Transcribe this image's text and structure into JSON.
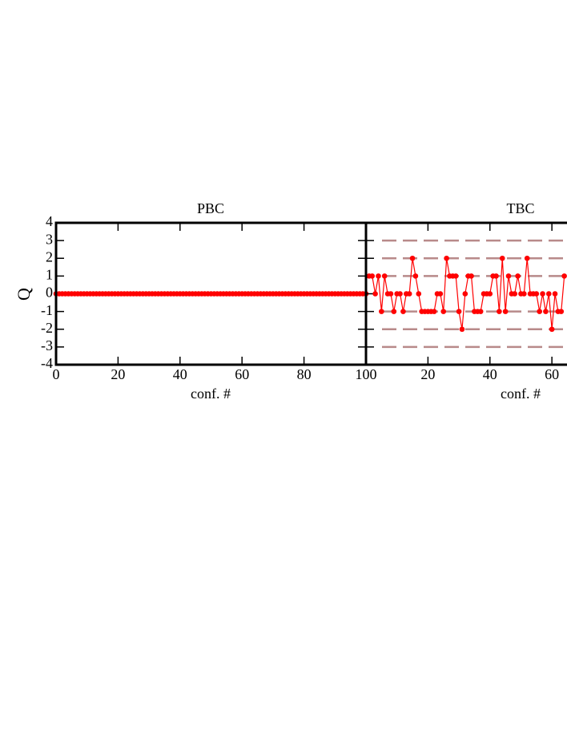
{
  "chart_data": [
    {
      "type": "line",
      "title": "PBC",
      "xlabel": "conf. #",
      "ylabel": "Q",
      "color": "#ff0000",
      "x": [
        0,
        1,
        2,
        3,
        4,
        5,
        6,
        7,
        8,
        9,
        10,
        11,
        12,
        13,
        14,
        15,
        16,
        17,
        18,
        19,
        20,
        21,
        22,
        23,
        24,
        25,
        26,
        27,
        28,
        29,
        30,
        31,
        32,
        33,
        34,
        35,
        36,
        37,
        38,
        39,
        40,
        41,
        42,
        43,
        44,
        45,
        46,
        47,
        48,
        49,
        50,
        51,
        52,
        53,
        54,
        55,
        56,
        57,
        58,
        59,
        60,
        61,
        62,
        63,
        64,
        65,
        66,
        67,
        68,
        69,
        70,
        71,
        72,
        73,
        74,
        75,
        76,
        77,
        78,
        79,
        80,
        81,
        82,
        83,
        84,
        85,
        86,
        87,
        88,
        89,
        90,
        91,
        92,
        93,
        94,
        95,
        96,
        97,
        98,
        99,
        100
      ],
      "values": [
        0,
        0,
        0,
        0,
        0,
        0,
        0,
        0,
        0,
        0,
        0,
        0,
        0,
        0,
        0,
        0,
        0,
        0,
        0,
        0,
        0,
        0,
        0,
        0,
        0,
        0,
        0,
        0,
        0,
        0,
        0,
        0,
        0,
        0,
        0,
        0,
        0,
        0,
        0,
        0,
        0,
        0,
        0,
        0,
        0,
        0,
        0,
        0,
        0,
        0,
        0,
        0,
        0,
        0,
        0,
        0,
        0,
        0,
        0,
        0,
        0,
        0,
        0,
        0,
        0,
        0,
        0,
        0,
        0,
        0,
        0,
        0,
        0,
        0,
        0,
        0,
        0,
        0,
        0,
        0,
        0,
        0,
        0,
        0,
        0,
        0,
        0,
        0,
        0,
        0,
        0,
        0,
        0,
        0,
        0,
        0,
        0,
        0,
        0,
        0,
        0
      ],
      "xlim": [
        0,
        100
      ],
      "xticks": [
        0,
        20,
        40,
        60,
        80,
        100
      ],
      "ylim": [
        -4,
        4
      ],
      "yticks": [
        -4,
        -3,
        -2,
        -1,
        0,
        1,
        2,
        3,
        4
      ]
    },
    {
      "type": "line",
      "title": "TBC",
      "xlabel": "conf. #",
      "color": "#ff0000",
      "reference_color": "#b88a8a",
      "x": [
        1,
        2,
        3,
        4,
        5,
        6,
        7,
        8,
        9,
        10,
        11,
        12,
        13,
        14,
        15,
        16,
        17,
        18,
        19,
        20,
        21,
        22,
        23,
        24,
        25,
        26,
        27,
        28,
        29,
        30,
        31,
        32,
        33,
        34,
        35,
        36,
        37,
        38,
        39,
        40,
        41,
        42,
        43,
        44,
        45,
        46,
        47,
        48,
        49,
        50,
        51,
        52,
        53,
        54,
        55,
        56,
        57,
        58,
        59,
        60,
        61,
        62,
        63,
        64
      ],
      "values": [
        1,
        1,
        0,
        1,
        -1,
        1,
        0,
        0,
        -1,
        0,
        0,
        -1,
        0,
        0,
        2,
        1,
        0,
        -1,
        -1,
        -1,
        -1,
        -1,
        0,
        0,
        -1,
        2,
        1,
        1,
        1,
        -1,
        -2,
        0,
        1,
        1,
        -1,
        -1,
        -1,
        0,
        0,
        0,
        1,
        1,
        -1,
        2,
        -1,
        1,
        0,
        0,
        1,
        0,
        0,
        2,
        0,
        0,
        0,
        -1,
        0,
        -1,
        0,
        -2,
        0,
        -1,
        -1,
        1
      ],
      "reference_lines": [
        -3,
        -2,
        -1,
        1,
        2,
        3
      ],
      "xlim": [
        0,
        65
      ],
      "xticks": [
        20,
        40,
        60
      ],
      "ylim": [
        -4,
        4
      ],
      "yticks": [
        -4,
        -3,
        -2,
        -1,
        0,
        1,
        2,
        3,
        4
      ]
    }
  ]
}
